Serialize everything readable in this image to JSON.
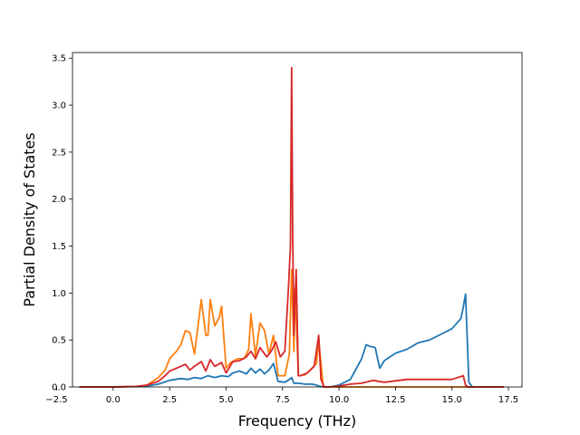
{
  "chart_data": {
    "type": "line",
    "title": "",
    "xlabel": "Frequency (THz)",
    "ylabel": "Partial Density of States",
    "xlim": [
      -1.8,
      18.1
    ],
    "ylim": [
      0,
      3.56
    ],
    "xticks": [
      -2.5,
      0.0,
      2.5,
      5.0,
      7.5,
      10.0,
      12.5,
      15.0,
      17.5
    ],
    "xtick_labels": [
      "−2.5",
      "0.0",
      "2.5",
      "5.0",
      "7.5",
      "10.0",
      "12.5",
      "15.0",
      "17.5"
    ],
    "yticks": [
      0.0,
      0.5,
      1.0,
      1.5,
      2.0,
      2.5,
      3.0,
      3.5
    ],
    "ytick_labels": [
      "0.0",
      "0.5",
      "1.0",
      "1.5",
      "2.0",
      "2.5",
      "3.0",
      "3.5"
    ],
    "grid": false,
    "legend": "none",
    "series": [
      {
        "color": "#1f77b4",
        "x": [
          -1.5,
          0.0,
          1.0,
          1.5,
          2.0,
          2.5,
          3.0,
          3.3,
          3.6,
          3.9,
          4.2,
          4.5,
          4.8,
          5.1,
          5.3,
          5.6,
          5.9,
          6.1,
          6.3,
          6.5,
          6.7,
          6.9,
          7.1,
          7.3,
          7.6,
          7.8,
          7.9,
          8.0,
          8.2,
          8.5,
          8.8,
          9.0,
          9.1,
          9.3,
          9.6,
          10.0,
          10.5,
          11.0,
          11.2,
          11.4,
          11.6,
          11.8,
          12.0,
          12.5,
          13.0,
          13.5,
          14.0,
          14.5,
          15.0,
          15.4,
          15.5,
          15.6,
          15.75,
          15.9,
          16.5,
          17.3
        ],
        "y": [
          0.0,
          0.0,
          0.005,
          0.01,
          0.03,
          0.07,
          0.09,
          0.08,
          0.1,
          0.09,
          0.12,
          0.1,
          0.12,
          0.11,
          0.15,
          0.17,
          0.14,
          0.2,
          0.15,
          0.19,
          0.14,
          0.18,
          0.25,
          0.06,
          0.05,
          0.08,
          0.1,
          0.04,
          0.04,
          0.03,
          0.03,
          0.02,
          0.01,
          0.0,
          0.0,
          0.02,
          0.08,
          0.3,
          0.45,
          0.43,
          0.42,
          0.2,
          0.28,
          0.36,
          0.4,
          0.47,
          0.5,
          0.56,
          0.62,
          0.73,
          0.85,
          0.99,
          0.05,
          0.0,
          0.0,
          0.0
        ]
      },
      {
        "color": "#ff7f0e",
        "x": [
          -1.5,
          0.0,
          1.0,
          1.5,
          2.0,
          2.3,
          2.5,
          2.8,
          3.0,
          3.2,
          3.4,
          3.6,
          3.9,
          4.1,
          4.2,
          4.3,
          4.5,
          4.7,
          4.8,
          5.0,
          5.2,
          5.5,
          5.8,
          6.0,
          6.1,
          6.3,
          6.5,
          6.7,
          6.9,
          7.1,
          7.3,
          7.6,
          7.8,
          7.9,
          8.0,
          8.05,
          8.1,
          8.2,
          8.5,
          8.8,
          9.0,
          9.1,
          9.3,
          9.6,
          10.0,
          15.5,
          17.3
        ],
        "y": [
          0.0,
          0.0,
          0.005,
          0.02,
          0.1,
          0.18,
          0.3,
          0.38,
          0.45,
          0.6,
          0.58,
          0.35,
          0.93,
          0.55,
          0.55,
          0.93,
          0.65,
          0.74,
          0.86,
          0.2,
          0.26,
          0.3,
          0.3,
          0.4,
          0.78,
          0.33,
          0.68,
          0.6,
          0.35,
          0.55,
          0.12,
          0.12,
          0.35,
          1.25,
          0.38,
          1.05,
          0.75,
          0.12,
          0.13,
          0.2,
          0.25,
          0.5,
          0.0,
          0.0,
          0.0,
          0.0,
          0.0
        ]
      },
      {
        "color": "#d62728",
        "x": [
          -1.5,
          0.0,
          1.0,
          1.5,
          2.0,
          2.3,
          2.5,
          2.8,
          3.0,
          3.2,
          3.4,
          3.6,
          3.9,
          4.1,
          4.3,
          4.5,
          4.8,
          5.0,
          5.3,
          5.6,
          5.9,
          6.1,
          6.3,
          6.5,
          6.8,
          7.0,
          7.2,
          7.4,
          7.6,
          7.75,
          7.85,
          7.9,
          7.95,
          8.0,
          8.1,
          8.2,
          8.3,
          8.6,
          8.9,
          9.1,
          9.2,
          9.35,
          9.6,
          10.0,
          10.5,
          11.0,
          11.5,
          12.0,
          13.0,
          14.0,
          15.0,
          15.5,
          15.6,
          15.7,
          16.0,
          17.3
        ],
        "y": [
          0.0,
          0.0,
          0.005,
          0.02,
          0.06,
          0.12,
          0.17,
          0.2,
          0.22,
          0.24,
          0.18,
          0.22,
          0.27,
          0.17,
          0.29,
          0.22,
          0.26,
          0.15,
          0.27,
          0.28,
          0.32,
          0.38,
          0.3,
          0.42,
          0.32,
          0.38,
          0.48,
          0.32,
          0.38,
          1.0,
          1.5,
          3.4,
          1.6,
          0.55,
          1.25,
          0.12,
          0.12,
          0.15,
          0.22,
          0.55,
          0.08,
          0.0,
          0.0,
          0.01,
          0.03,
          0.04,
          0.07,
          0.05,
          0.08,
          0.08,
          0.08,
          0.12,
          0.02,
          0.0,
          0.0,
          0.0
        ]
      }
    ]
  }
}
